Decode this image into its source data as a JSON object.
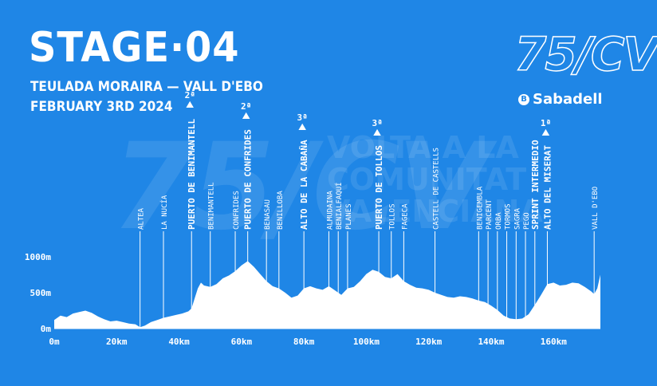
{
  "header": {
    "stage": "STAGE·04",
    "route": "TEULADA MORAIRA — VALL D'EBO",
    "date": "FEBRUARY 3RD 2024"
  },
  "brand": {
    "logo": "75/CV",
    "sponsor_icon": "B",
    "sponsor": "Sabadell",
    "watermark_text": "VOLTA A LA COMUNITAT VALENCIANA"
  },
  "colors": {
    "background": "#1f86e6",
    "profile": "#ffffff",
    "accent": "#ffffff"
  },
  "chart_data": {
    "type": "area",
    "title": "",
    "xlabel": "",
    "ylabel": "",
    "xlim": [
      0,
      175
    ],
    "ylim": [
      0,
      1000
    ],
    "x_ticks": [
      {
        "value": 0,
        "label": "0m"
      },
      {
        "value": 20,
        "label": "20km"
      },
      {
        "value": 40,
        "label": "40km"
      },
      {
        "value": 60,
        "label": "60km"
      },
      {
        "value": 80,
        "label": "80km"
      },
      {
        "value": 100,
        "label": "100km"
      },
      {
        "value": 120,
        "label": "120km"
      },
      {
        "value": 140,
        "label": "140km"
      },
      {
        "value": 160,
        "label": "160km"
      }
    ],
    "y_ticks": [
      {
        "value": 0,
        "label": "0m"
      },
      {
        "value": 500,
        "label": "500m"
      },
      {
        "value": 1000,
        "label": "1000m"
      }
    ],
    "profile": {
      "x": [
        0,
        2,
        4,
        6,
        8,
        10,
        12,
        14,
        16,
        18,
        20,
        22,
        24,
        26,
        27.5,
        29,
        31,
        33,
        35,
        37,
        39,
        41,
        43,
        44,
        45,
        46,
        47,
        48,
        50,
        52,
        54,
        56,
        58,
        60,
        62,
        64,
        66,
        68,
        70,
        72,
        74,
        76,
        78,
        80,
        82,
        84,
        86,
        88,
        90,
        92,
        94,
        96,
        98,
        100,
        102,
        104,
        106,
        108,
        110,
        112,
        114,
        116,
        118,
        120,
        122,
        124,
        126,
        128,
        130,
        132,
        134,
        136,
        138,
        140,
        142,
        144,
        146,
        148,
        150,
        152,
        154,
        156,
        158,
        160,
        162,
        164,
        166,
        168,
        170,
        172,
        173,
        174,
        175
      ],
      "y": [
        120,
        180,
        160,
        210,
        230,
        250,
        220,
        170,
        130,
        100,
        110,
        90,
        70,
        60,
        20,
        40,
        90,
        120,
        150,
        170,
        190,
        210,
        240,
        280,
        420,
        560,
        640,
        600,
        580,
        620,
        700,
        740,
        800,
        880,
        940,
        860,
        760,
        660,
        590,
        560,
        500,
        430,
        460,
        560,
        590,
        560,
        540,
        590,
        530,
        470,
        560,
        580,
        660,
        760,
        820,
        790,
        720,
        700,
        760,
        660,
        610,
        570,
        560,
        540,
        500,
        470,
        440,
        430,
        450,
        440,
        420,
        390,
        370,
        320,
        260,
        180,
        140,
        130,
        140,
        200,
        330,
        470,
        620,
        640,
        600,
        610,
        640,
        630,
        580,
        520,
        480,
        560,
        750
      ]
    },
    "markers": [
      {
        "km": 27.5,
        "label": "ALTEA",
        "type": "town"
      },
      {
        "km": 35,
        "label": "LA NUCÍA",
        "type": "town"
      },
      {
        "km": 44,
        "label": "PUERTO DE BENIMANTELL",
        "type": "climb",
        "category": "2ª"
      },
      {
        "km": 50,
        "label": "BENIMANTELL",
        "type": "town"
      },
      {
        "km": 58,
        "label": "CONFRIDES",
        "type": "town"
      },
      {
        "km": 62,
        "label": "PUERTO DE CONFRIDES",
        "type": "climb",
        "category": "2ª"
      },
      {
        "km": 68,
        "label": "BENASAU",
        "type": "town"
      },
      {
        "km": 72,
        "label": "BENILLOBA",
        "type": "town"
      },
      {
        "km": 80,
        "label": "ALTO DE LA CABAÑA",
        "type": "climb",
        "category": "3ª"
      },
      {
        "km": 88,
        "label": "ALMUDAINA",
        "type": "town"
      },
      {
        "km": 91,
        "label": "BENIALFAQUÍ",
        "type": "town"
      },
      {
        "km": 94,
        "label": "PLANES",
        "type": "town"
      },
      {
        "km": 104,
        "label": "PUERTO DE TOLLOS",
        "type": "climb",
        "category": "3ª"
      },
      {
        "km": 108,
        "label": "TOLLOS",
        "type": "town"
      },
      {
        "km": 112,
        "label": "FAGECA",
        "type": "town"
      },
      {
        "km": 122,
        "label": "CASTELL DE CASTELLS",
        "type": "town"
      },
      {
        "km": 136,
        "label": "BENIGEMBLA",
        "type": "town"
      },
      {
        "km": 139,
        "label": "PARCENT",
        "type": "town"
      },
      {
        "km": 142,
        "label": "ORBA",
        "type": "town"
      },
      {
        "km": 145,
        "label": "TORMOS",
        "type": "town"
      },
      {
        "km": 148,
        "label": "SAGRA",
        "type": "town"
      },
      {
        "km": 151,
        "label": "PEGO",
        "type": "town"
      },
      {
        "km": 154,
        "label": "SPRINT INTERMEDIO",
        "type": "sprint"
      },
      {
        "km": 158,
        "label": "ALTO DEL MISERAT",
        "type": "climb",
        "category": "1ª"
      },
      {
        "km": 173,
        "label": "VALL D'EBO",
        "type": "town"
      }
    ]
  }
}
